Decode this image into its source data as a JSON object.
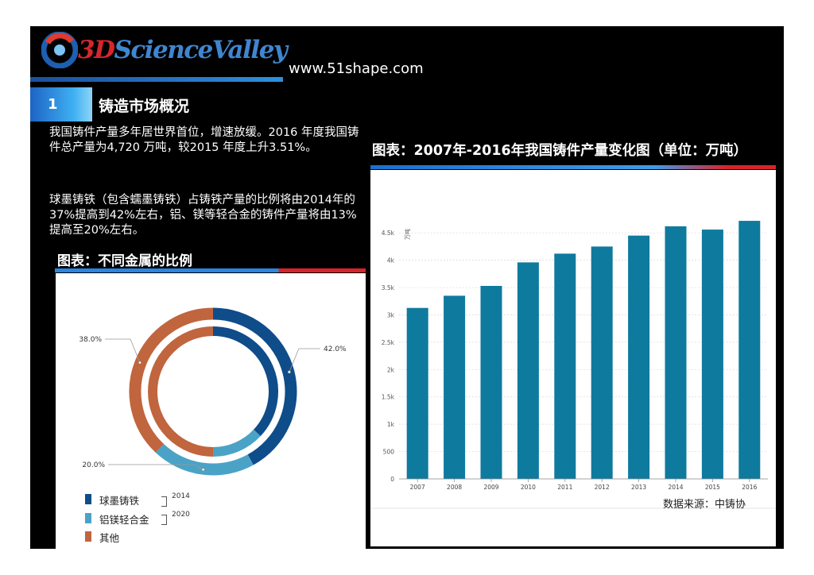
{
  "header": {
    "logo_text_3d": "3D",
    "logo_text_rest": "ScienceValley",
    "website": "www.51shape.com"
  },
  "section": {
    "number": "1",
    "title": "铸造市场概况"
  },
  "paragraphs": [
    "我国铸件产量多年居世界首位，增速放缓。2016 年度我国铸件总产量为4,720 万吨，较2015 年度上升3.51%。",
    "球墨铸铁（包含蠕墨铸铁）占铸铁产量的比例将由2014年的37%提高到42%左右，铝、镁等轻合金的铸件产量将由13%提高至20%左右。"
  ],
  "pie_chart_title": "图表：不同金属的比例",
  "bar_chart_title": "图表：2007年-2016年我国铸件产量变化图（单位：万吨）",
  "source_text": "数据来源：中铸协",
  "colors": {
    "ductile_iron": "#0f4c8a",
    "light_alloy": "#4aa3c6",
    "other": "#c0653e",
    "bar": "#0e7a9e",
    "accent_blue": "#2a86de",
    "accent_red": "#d9232a"
  },
  "chart_data": [
    {
      "type": "pie",
      "variant": "double-donut",
      "title": "",
      "categories": [
        "球墨铸铁",
        "铝镁轻合金",
        "其他"
      ],
      "series": [
        {
          "name": "2020",
          "ring": "outer",
          "values": [
            42.0,
            20.0,
            38.0
          ]
        },
        {
          "name": "2014",
          "ring": "inner",
          "values": [
            37.0,
            13.0,
            50.0
          ]
        }
      ],
      "data_labels": [
        "42.0%",
        "20.0%",
        "38.0%"
      ],
      "legend": {
        "items": [
          "球墨铸铁",
          "铝镁轻合金",
          "其他"
        ],
        "ring_labels": [
          "2014",
          "2020"
        ],
        "placement": "bottom-left"
      }
    },
    {
      "type": "bar",
      "title": "",
      "categories": [
        "2007",
        "2008",
        "2009",
        "2010",
        "2011",
        "2012",
        "2013",
        "2014",
        "2015",
        "2016"
      ],
      "values": [
        3127,
        3350,
        3530,
        3960,
        4120,
        4250,
        4450,
        4620,
        4560,
        4720
      ],
      "ylabel": "万吨",
      "xlabel": "",
      "ylim": [
        0,
        4750
      ],
      "yticks": [
        0,
        500,
        1000,
        1500,
        2000,
        2500,
        3000,
        3500,
        4000,
        4500
      ],
      "ytick_labels": [
        "0",
        "500",
        "1k",
        "1.5k",
        "2k",
        "2.5k",
        "3k",
        "3.5k",
        "4k",
        "4.5k"
      ],
      "grid": true
    }
  ]
}
